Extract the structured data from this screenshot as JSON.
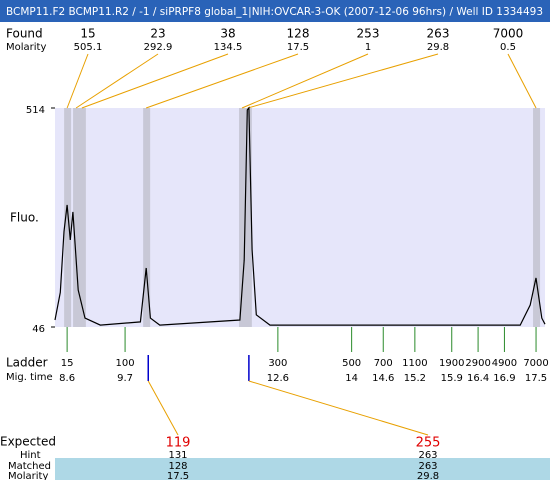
{
  "header": {
    "title": "BCMP11.F2  BCMP11.R2 / -1 / siPRPF8 global_1|NIH:OVCAR-3-OK (2007-12-06 96hrs) / Well ID 1334493"
  },
  "labels": {
    "found": "Found",
    "molarity": "Molarity",
    "fluo": "Fluo.",
    "ladder": "Ladder",
    "mig_time": "Mig. time",
    "expected": "Expected",
    "hint": "Hint",
    "matched": "Matched",
    "molarity_expected": "Molarity"
  },
  "chart_data": {
    "type": "line",
    "color": "#000000",
    "x": [
      8.37,
      8.47,
      8.54,
      8.6,
      8.66,
      8.71,
      8.81,
      8.94,
      9.23,
      9.99,
      10.1,
      10.18,
      10.36,
      11.88,
      11.96,
      12.02,
      12.05,
      12.11,
      12.19,
      12.45,
      17.2,
      17.39,
      17.5,
      17.61,
      17.67
    ],
    "values": [
      61,
      120,
      250,
      307,
      232,
      292,
      125,
      65,
      50,
      57,
      172,
      65,
      50,
      61,
      189,
      510,
      514,
      211,
      72,
      50,
      50,
      93,
      151,
      65,
      52
    ],
    "xlim": [
      8.37,
      17.67
    ],
    "ylim": [
      46,
      514
    ],
    "yticks": [
      46,
      514
    ],
    "found": {
      "sizes": [
        15,
        23,
        38,
        128,
        253,
        263,
        7000
      ],
      "molarity": [
        505.1,
        292.9,
        134.5,
        17.5,
        1,
        29.8,
        0.5
      ],
      "mig_time": [
        8.6,
        8.77,
        8.88,
        10.1,
        11.92,
        12.03,
        17.5
      ]
    },
    "ladder": {
      "sizes": [
        15,
        100,
        300,
        500,
        700,
        1100,
        1900,
        2900,
        4900,
        7000
      ],
      "mig_time": [
        8.6,
        9.7,
        12.6,
        14,
        14.6,
        15.2,
        15.9,
        16.4,
        16.9,
        17.5
      ]
    },
    "expected": {
      "sizes": [
        119,
        255
      ],
      "mig_time": [
        10.14,
        12.05
      ],
      "hint": [
        131,
        263
      ],
      "matched": [
        128,
        263
      ],
      "molarity": [
        17.5,
        29.8
      ]
    }
  }
}
